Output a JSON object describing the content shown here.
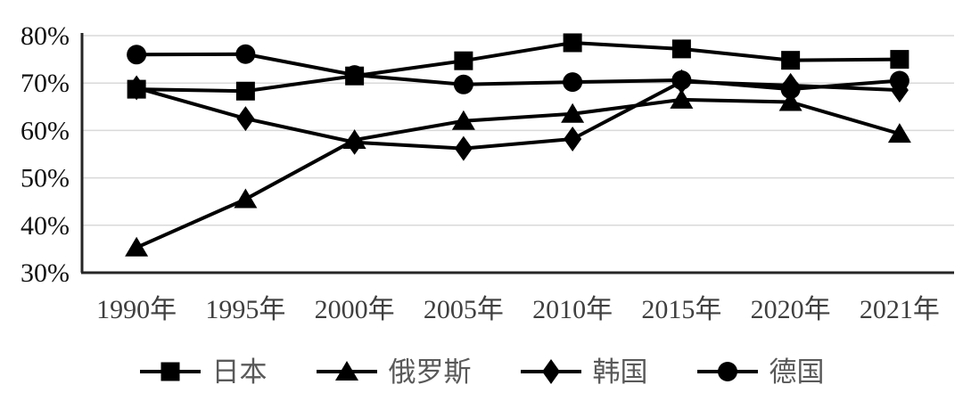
{
  "chart_data": {
    "type": "line",
    "categories": [
      "1990年",
      "1995年",
      "2000年",
      "2005年",
      "2010年",
      "2015年",
      "2020年",
      "2021年"
    ],
    "series": [
      {
        "name": "日本",
        "marker": "square",
        "values": [
          68.7,
          68.3,
          71.5,
          74.7,
          78.5,
          77.2,
          74.8,
          75.0
        ]
      },
      {
        "name": "俄罗斯",
        "marker": "triangle",
        "values": [
          35.3,
          45.5,
          58.0,
          62.0,
          63.5,
          66.5,
          66.0,
          59.3
        ]
      },
      {
        "name": "韩国",
        "marker": "diamond",
        "values": [
          69.0,
          62.5,
          57.5,
          56.2,
          58.2,
          70.3,
          69.5,
          68.5
        ]
      },
      {
        "name": "德国",
        "marker": "circle",
        "values": [
          76.0,
          76.1,
          71.7,
          69.7,
          70.2,
          70.6,
          68.7,
          70.5
        ]
      }
    ],
    "title": "",
    "xlabel": "",
    "ylabel": "",
    "ylim": [
      30,
      80
    ],
    "yticks": [
      {
        "value": 30,
        "label": "30%"
      },
      {
        "value": 40,
        "label": "40%"
      },
      {
        "value": 50,
        "label": "50%"
      },
      {
        "value": 60,
        "label": "60%"
      },
      {
        "value": 70,
        "label": "70%"
      },
      {
        "value": 80,
        "label": "80%"
      }
    ],
    "grid": true,
    "legend_position": "bottom",
    "colors": {
      "series_line": "#000000",
      "marker_fill": "#000000",
      "gridline": "#d9d9d9",
      "axis": "#262626",
      "y_tick_label": "#111111",
      "x_tick_label": "#3f3f3f",
      "legend_label": "#595959",
      "background": "#ffffff"
    }
  }
}
